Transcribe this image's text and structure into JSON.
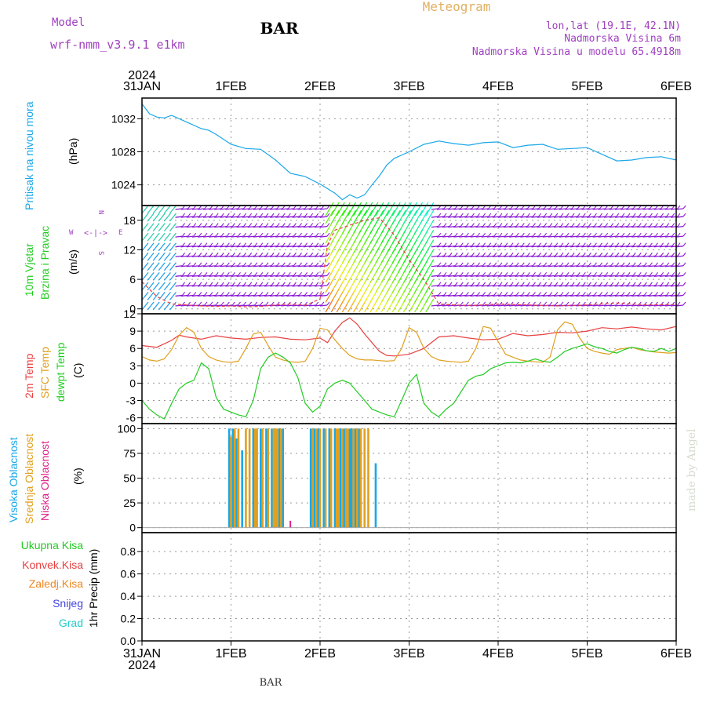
{
  "header": {
    "model_label": "Model",
    "model_name": "wrf-nmm_v3.9.1 e1km",
    "station": "BAR",
    "title": "Meteogram",
    "lonlat": "lon,lat (19.1E, 42.1N)",
    "altitude": "Nadmorska Visina 6m",
    "model_altitude": "Nadmorska Visina u modelu 65.4918m",
    "footer_station": "BAR",
    "credit": "made by Angel"
  },
  "time_axis": {
    "year": "2024",
    "ticks": [
      "31JAN",
      "1FEB",
      "2FEB",
      "3FEB",
      "4FEB",
      "5FEB",
      "6FEB"
    ]
  },
  "colors": {
    "pressure": "#1aa7e8",
    "temp2m": "#e84040",
    "sfc": "#e0a020",
    "dew": "#22cc22",
    "high_cloud": "#1aa7e8",
    "mid_cloud": "#e0a020",
    "low_cloud": "#dd2288",
    "total_precip": "#22cc22",
    "conv_precip": "#e84040",
    "frozen_precip": "#ee8822",
    "snow": "#4444dd",
    "hail": "#22cccc",
    "wind_label": "#22cc22",
    "wind_low": "#8a1ad6"
  },
  "panels": {
    "pressure": {
      "label": "Pritisak na nivou mora",
      "unit": "(hPa)"
    },
    "wind": {
      "label1": "10m Vjetar",
      "label2": "Brzina i Pravac",
      "unit": "(m/s)",
      "compass_n": "N",
      "compass_s": "S",
      "compass_w": "W",
      "compass_e": "E",
      "compass_glyph": "<-|->"
    },
    "temp": {
      "label1": "2m Temp",
      "label2": "SFC Temp",
      "label3": "dewpt Temp",
      "unit": "(C)"
    },
    "cloud": {
      "label1": "Visoka Oblacnost",
      "label2": "Srednja Oblacnost",
      "label3": "Niska Oblacnost",
      "unit": "(%)"
    },
    "precip": {
      "label_total": "Ukupna Kisa",
      "label_conv": "Konvek.Kisa",
      "label_frozen": "Zaledj.Kisa",
      "label_snow": "Snijeg",
      "label_hail": "Grad",
      "unit": "1hr Precip (mm)"
    }
  },
  "chart_data": [
    {
      "type": "line",
      "panel": "pressure",
      "x_unit": "hours from 31JAN 00",
      "ylim": [
        1021.5,
        1034.5
      ],
      "yticks": [
        1024,
        1028,
        1032
      ],
      "grid": true,
      "series": [
        {
          "name": "Pritisak na nivou mora",
          "x": [
            0,
            2,
            4,
            6,
            8,
            12,
            16,
            18,
            20,
            24,
            28,
            32,
            36,
            40,
            44,
            48,
            52,
            54,
            56,
            58,
            60,
            62,
            64,
            66,
            68,
            72,
            76,
            80,
            84,
            88,
            92,
            96,
            100,
            104,
            108,
            112,
            116,
            120,
            124,
            128,
            132,
            136,
            140,
            144
          ],
          "y": [
            1033.8,
            1032.6,
            1032.2,
            1032.1,
            1032.4,
            1031.6,
            1030.8,
            1030.6,
            1030.1,
            1028.9,
            1028.4,
            1028.3,
            1027.0,
            1025.4,
            1025.0,
            1024.1,
            1023.0,
            1022.2,
            1022.8,
            1022.4,
            1022.8,
            1024.0,
            1025.1,
            1026.4,
            1027.2,
            1028.0,
            1028.9,
            1029.3,
            1029.0,
            1028.8,
            1029.1,
            1029.2,
            1028.5,
            1028.8,
            1028.9,
            1028.3,
            1028.4,
            1028.5,
            1027.7,
            1026.9,
            1027.0,
            1027.3,
            1027.4,
            1027.0
          ]
        }
      ]
    },
    {
      "type": "line",
      "panel": "wind",
      "ylim": [
        -1,
        21
      ],
      "yticks": [
        0,
        6,
        12,
        18
      ],
      "grid": true,
      "series": [
        {
          "name": "10m Vjetar",
          "x": [
            0,
            4,
            8,
            12,
            16,
            20,
            24,
            28,
            32,
            36,
            40,
            44,
            48,
            50,
            52,
            56,
            60,
            64,
            68,
            72,
            76,
            80,
            84,
            88,
            92,
            96,
            104,
            112,
            120,
            128,
            136,
            144
          ],
          "y": [
            5.5,
            2.5,
            1.0,
            0.8,
            0.6,
            0.5,
            0.6,
            0.4,
            0.5,
            0.8,
            1.0,
            0.7,
            2.0,
            13.0,
            16.0,
            17.0,
            18.0,
            18.5,
            15.0,
            10.0,
            6.0,
            1.0,
            0.8,
            0.7,
            0.8,
            1.0,
            0.8,
            0.6,
            0.8,
            1.2,
            0.8,
            0.9
          ]
        }
      ]
    },
    {
      "type": "line",
      "panel": "temp",
      "ylim": [
        -7,
        12
      ],
      "yticks": [
        -6,
        -3,
        0,
        3,
        6,
        9,
        12
      ],
      "grid": true,
      "series": [
        {
          "name": "2m Temp",
          "x": [
            0,
            4,
            8,
            10,
            12,
            16,
            20,
            24,
            28,
            32,
            36,
            40,
            44,
            48,
            50,
            52,
            54,
            56,
            58,
            60,
            62,
            64,
            66,
            68,
            72,
            76,
            80,
            84,
            88,
            92,
            96,
            100,
            104,
            108,
            112,
            116,
            120,
            124,
            128,
            132,
            136,
            140,
            144
          ],
          "y": [
            6.5,
            6.2,
            7.4,
            8.3,
            8.0,
            7.6,
            8.2,
            7.8,
            7.6,
            7.9,
            8.0,
            7.6,
            7.5,
            7.8,
            7.0,
            9.0,
            10.5,
            11.3,
            10.2,
            8.5,
            7.0,
            5.5,
            4.8,
            4.7,
            5.0,
            6.0,
            8.0,
            8.2,
            7.8,
            7.5,
            7.6,
            8.6,
            8.2,
            8.4,
            8.8,
            8.7,
            9.0,
            9.6,
            9.4,
            9.7,
            9.4,
            9.2,
            9.8
          ]
        },
        {
          "name": "SFC Temp",
          "x": [
            0,
            2,
            4,
            6,
            8,
            10,
            12,
            14,
            16,
            18,
            20,
            22,
            24,
            26,
            28,
            30,
            32,
            34,
            36,
            38,
            40,
            42,
            44,
            46,
            48,
            50,
            52,
            54,
            56,
            58,
            60,
            62,
            64,
            66,
            68,
            70,
            72,
            74,
            76,
            78,
            80,
            82,
            84,
            86,
            88,
            90,
            92,
            94,
            96,
            98,
            100,
            102,
            104,
            106,
            108,
            110,
            112,
            114,
            116,
            118,
            120,
            122,
            124,
            126,
            128,
            130,
            132,
            134,
            136,
            138,
            140,
            142,
            144
          ],
          "y": [
            4.6,
            4.0,
            3.8,
            4.2,
            5.8,
            8.3,
            9.6,
            8.8,
            6.0,
            4.6,
            4.0,
            3.7,
            3.6,
            3.8,
            6.0,
            8.5,
            8.8,
            6.5,
            4.5,
            4.0,
            3.7,
            3.6,
            3.8,
            6.0,
            9.5,
            9.2,
            7.5,
            6.0,
            4.8,
            4.2,
            4.0,
            4.0,
            3.9,
            3.8,
            3.9,
            6.0,
            9.6,
            8.8,
            6.0,
            4.6,
            4.0,
            3.8,
            3.7,
            3.6,
            3.8,
            6.0,
            9.8,
            9.5,
            7.2,
            5.0,
            4.5,
            4.0,
            3.8,
            3.7,
            3.6,
            4.5,
            9.2,
            10.6,
            10.2,
            7.8,
            6.0,
            5.5,
            5.2,
            5.0,
            5.8,
            6.0,
            6.2,
            5.8,
            5.6,
            5.4,
            5.3,
            5.2,
            5.3
          ]
        },
        {
          "name": "dewpt Temp",
          "x": [
            0,
            2,
            4,
            6,
            8,
            10,
            12,
            14,
            16,
            18,
            20,
            22,
            24,
            26,
            28,
            30,
            32,
            34,
            36,
            38,
            40,
            42,
            44,
            46,
            48,
            50,
            52,
            54,
            56,
            58,
            60,
            62,
            64,
            66,
            68,
            70,
            72,
            74,
            76,
            78,
            80,
            82,
            84,
            86,
            88,
            90,
            92,
            94,
            96,
            98,
            100,
            102,
            104,
            106,
            108,
            110,
            112,
            114,
            116,
            118,
            120,
            122,
            124,
            126,
            128,
            130,
            132,
            134,
            136,
            138,
            140,
            142,
            144
          ],
          "y": [
            -3.0,
            -4.5,
            -5.5,
            -6.2,
            -3.5,
            -1.0,
            0.0,
            0.5,
            3.5,
            2.5,
            -2.5,
            -4.5,
            -5.0,
            -5.5,
            -5.8,
            -3.0,
            2.5,
            4.5,
            5.2,
            4.5,
            3.5,
            1.0,
            -3.5,
            -5.0,
            -4.0,
            -1.0,
            0.0,
            0.5,
            0.0,
            -1.5,
            -3.0,
            -4.5,
            -5.0,
            -5.5,
            -5.8,
            -3.0,
            0.0,
            1.5,
            -3.5,
            -5.0,
            -5.8,
            -4.5,
            -3.5,
            -1.5,
            0.5,
            1.2,
            1.5,
            2.5,
            3.0,
            3.5,
            3.6,
            3.5,
            3.8,
            4.2,
            3.8,
            3.6,
            4.5,
            5.5,
            6.0,
            6.4,
            6.8,
            6.3,
            6.0,
            5.5,
            5.2,
            5.8,
            6.2,
            6.0,
            5.6,
            5.5,
            6.0,
            5.5,
            6.0
          ]
        }
      ]
    },
    {
      "type": "bar",
      "panel": "cloud",
      "ylim": [
        -5,
        105
      ],
      "yticks": [
        0,
        25,
        50,
        75,
        100
      ],
      "grid": true,
      "series": [
        {
          "name": "Visoka Oblacnost",
          "x": [
            23.5,
            24.5,
            25.5,
            27,
            30,
            32,
            33.5,
            35,
            37,
            38,
            45.5,
            46.5,
            47.5,
            49,
            50.5,
            52,
            53.5,
            54.5,
            56,
            56.5,
            57.5,
            58.5,
            63
          ],
          "y": [
            100,
            100,
            90,
            78,
            100,
            100,
            100,
            100,
            100,
            100,
            100,
            100,
            100,
            100,
            100,
            100,
            100,
            100,
            100,
            100,
            100,
            100,
            65
          ]
        },
        {
          "name": "Srednja Oblacnost",
          "x": [
            24,
            25,
            26,
            28,
            29,
            30.5,
            31,
            32.5,
            34,
            35.5,
            36,
            36.5,
            37.5,
            46,
            47,
            48,
            49.5,
            51,
            52.5,
            53,
            54,
            55,
            55.5,
            57,
            58,
            59,
            60,
            61
          ],
          "y": [
            92,
            100,
            100,
            100,
            100,
            100,
            100,
            100,
            100,
            100,
            100,
            100,
            100,
            100,
            100,
            100,
            100,
            100,
            100,
            100,
            100,
            100,
            100,
            100,
            100,
            100,
            100,
            100
          ]
        },
        {
          "name": "Niska Oblacnost",
          "x": [
            40
          ],
          "y": [
            7
          ]
        }
      ]
    },
    {
      "type": "line",
      "panel": "precip",
      "ylim": [
        0,
        0.97
      ],
      "yticks": [
        0,
        0.2,
        0.4,
        0.6,
        0.8
      ],
      "grid": true,
      "series": []
    }
  ]
}
